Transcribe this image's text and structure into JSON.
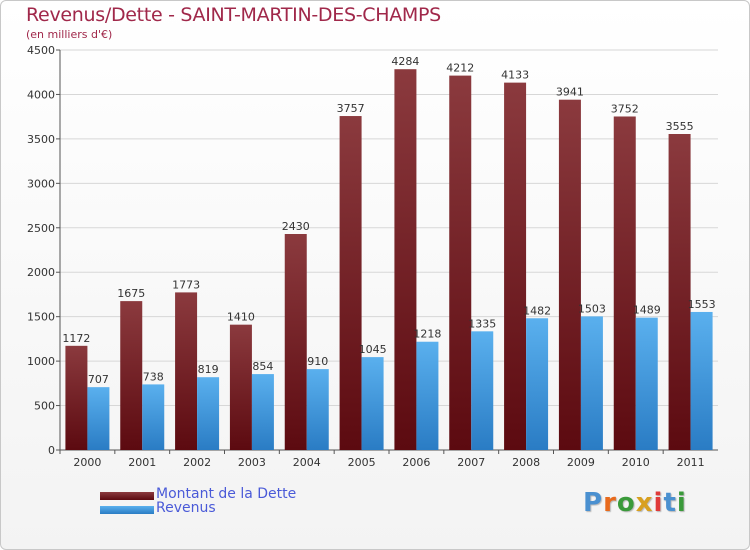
{
  "title": "Revenus/Dette - SAINT-MARTIN-DES-CHAMPS",
  "subtitle": "(en milliers d'€)",
  "logo": "Proxiti",
  "colors": {
    "dette_top": "#8b3a3e",
    "dette_bottom": "#5c0a10",
    "revenus_top": "#5ab0ee",
    "revenus_bottom": "#2a7cc4",
    "title": "#a0284a",
    "legend_text": "#4a5ad8"
  },
  "chart_data": {
    "type": "bar",
    "title": "Revenus/Dette - SAINT-MARTIN-DES-CHAMPS",
    "subtitle": "(en milliers d'€)",
    "categories": [
      "2000",
      "2001",
      "2002",
      "2003",
      "2004",
      "2005",
      "2006",
      "2007",
      "2008",
      "2009",
      "2010",
      "2011"
    ],
    "series": [
      {
        "name": "Montant de la Dette",
        "values": [
          1172,
          1675,
          1773,
          1410,
          2430,
          3757,
          4284,
          4212,
          4133,
          3941,
          3752,
          3555
        ]
      },
      {
        "name": "Revenus",
        "values": [
          707,
          738,
          819,
          854,
          910,
          1045,
          1218,
          1335,
          1482,
          1503,
          1489,
          1553
        ]
      }
    ],
    "ylim": [
      0,
      4500
    ],
    "yticks": [
      0,
      500,
      1000,
      1500,
      2000,
      2500,
      3000,
      3500,
      4000,
      4500
    ],
    "grid": true,
    "legend_placement": "bottom-left"
  }
}
